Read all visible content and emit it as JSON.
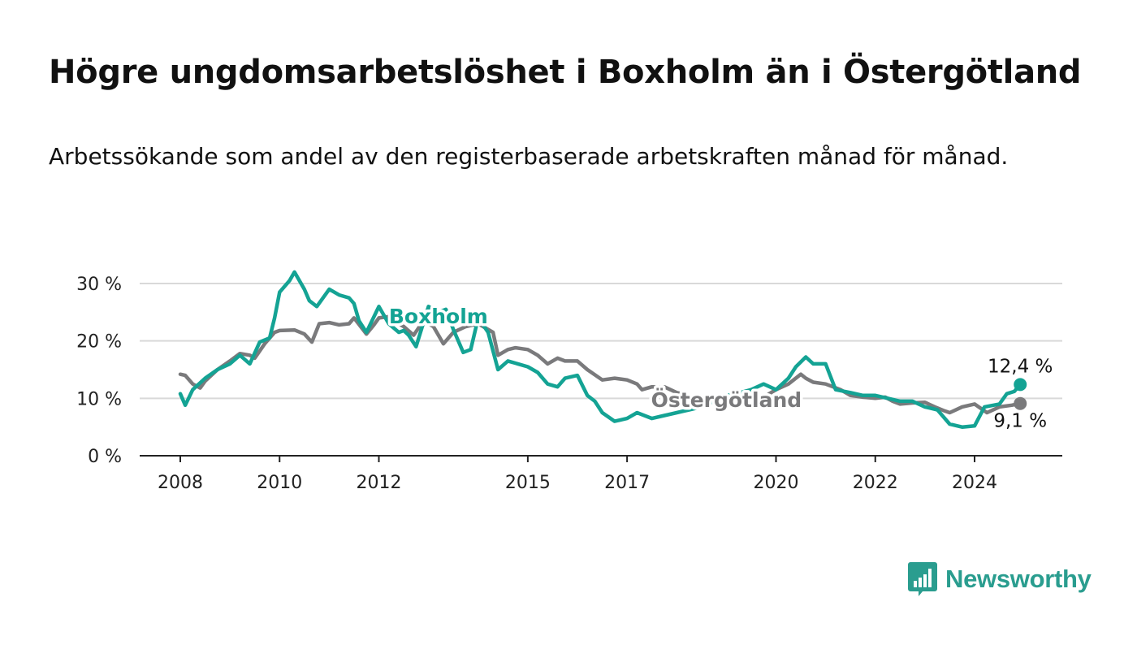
{
  "title": "Högre ungdomsarbetslöshet i Boxholm än i Östergötland",
  "subtitle": "Arbetssökande som andel av den registerbaserade arbetskraften månad för månad.",
  "brand": {
    "name": "Newsworthy",
    "icon": "bar-chart-speech-bubble-icon",
    "color": "#2a9d8f"
  },
  "chart_data": {
    "type": "line",
    "title": "",
    "xlabel": "",
    "ylabel": "",
    "ylim": [
      0,
      30
    ],
    "xlim": [
      2008.0,
      2024.92
    ],
    "yticks": [
      {
        "value": 0,
        "label": "0 %"
      },
      {
        "value": 10,
        "label": "10 %"
      },
      {
        "value": 20,
        "label": "20 %"
      },
      {
        "value": 30,
        "label": "30 %"
      }
    ],
    "xticks": [
      {
        "value": 2008,
        "label": "2008"
      },
      {
        "value": 2010,
        "label": "2010"
      },
      {
        "value": 2012,
        "label": "2012"
      },
      {
        "value": 2015,
        "label": "2015"
      },
      {
        "value": 2017,
        "label": "2017"
      },
      {
        "value": 2020,
        "label": "2020"
      },
      {
        "value": 2022,
        "label": "2022"
      },
      {
        "value": 2024,
        "label": "2024"
      }
    ],
    "grid": true,
    "legend": "none",
    "series": [
      {
        "name": "Östergötland",
        "color": "#7a7a7c",
        "label_position": [
          2019.0,
          8.5
        ],
        "end_label": "9,1 %",
        "end_value": 9.1,
        "points": [
          [
            2008.0,
            14.2
          ],
          [
            2008.1,
            14.0
          ],
          [
            2008.25,
            12.5
          ],
          [
            2008.4,
            11.8
          ],
          [
            2008.5,
            13.0
          ],
          [
            2008.75,
            15.0
          ],
          [
            2009.0,
            16.5
          ],
          [
            2009.2,
            17.8
          ],
          [
            2009.4,
            17.5
          ],
          [
            2009.5,
            17.0
          ],
          [
            2009.7,
            19.5
          ],
          [
            2009.9,
            21.5
          ],
          [
            2010.0,
            21.8
          ],
          [
            2010.3,
            21.9
          ],
          [
            2010.5,
            21.2
          ],
          [
            2010.65,
            19.8
          ],
          [
            2010.8,
            23.0
          ],
          [
            2011.0,
            23.2
          ],
          [
            2011.2,
            22.8
          ],
          [
            2011.4,
            23.0
          ],
          [
            2011.5,
            24.0
          ],
          [
            2011.75,
            21.2
          ],
          [
            2011.9,
            22.8
          ],
          [
            2012.0,
            24.0
          ],
          [
            2012.25,
            24.3
          ],
          [
            2012.4,
            23.0
          ],
          [
            2012.5,
            22.5
          ],
          [
            2012.7,
            21.0
          ],
          [
            2012.9,
            23.5
          ],
          [
            2013.1,
            22.5
          ],
          [
            2013.3,
            19.5
          ],
          [
            2013.5,
            21.5
          ],
          [
            2013.75,
            22.5
          ],
          [
            2014.0,
            23.0
          ],
          [
            2014.3,
            21.5
          ],
          [
            2014.4,
            17.5
          ],
          [
            2014.6,
            18.5
          ],
          [
            2014.75,
            18.8
          ],
          [
            2015.0,
            18.5
          ],
          [
            2015.2,
            17.5
          ],
          [
            2015.4,
            16.0
          ],
          [
            2015.6,
            17.0
          ],
          [
            2015.75,
            16.5
          ],
          [
            2016.0,
            16.5
          ],
          [
            2016.2,
            15.0
          ],
          [
            2016.5,
            13.2
          ],
          [
            2016.75,
            13.5
          ],
          [
            2017.0,
            13.2
          ],
          [
            2017.2,
            12.5
          ],
          [
            2017.3,
            11.5
          ],
          [
            2017.5,
            12.0
          ],
          [
            2017.75,
            12.0
          ],
          [
            2018.0,
            11.0
          ],
          [
            2018.25,
            10.5
          ],
          [
            2018.5,
            9.0
          ],
          [
            2018.75,
            9.5
          ],
          [
            2019.0,
            9.5
          ],
          [
            2019.25,
            9.8
          ],
          [
            2019.5,
            10.5
          ],
          [
            2019.75,
            10.2
          ],
          [
            2020.0,
            11.5
          ],
          [
            2020.25,
            12.5
          ],
          [
            2020.5,
            14.2
          ],
          [
            2020.6,
            13.5
          ],
          [
            2020.75,
            12.8
          ],
          [
            2021.0,
            12.5
          ],
          [
            2021.3,
            11.5
          ],
          [
            2021.5,
            10.5
          ],
          [
            2021.75,
            10.2
          ],
          [
            2022.0,
            10.0
          ],
          [
            2022.2,
            10.2
          ],
          [
            2022.35,
            9.5
          ],
          [
            2022.5,
            9.0
          ],
          [
            2022.75,
            9.2
          ],
          [
            2023.0,
            9.3
          ],
          [
            2023.2,
            8.5
          ],
          [
            2023.4,
            7.8
          ],
          [
            2023.5,
            7.5
          ],
          [
            2023.75,
            8.5
          ],
          [
            2024.0,
            9.0
          ],
          [
            2024.25,
            7.5
          ],
          [
            2024.5,
            8.5
          ],
          [
            2024.75,
            8.8
          ],
          [
            2024.92,
            9.1
          ]
        ]
      },
      {
        "name": "Boxholm",
        "color": "#14a394",
        "label_position": [
          2013.2,
          23.1
        ],
        "end_label": "12,4 %",
        "end_value": 12.4,
        "points": [
          [
            2008.0,
            10.8
          ],
          [
            2008.1,
            8.8
          ],
          [
            2008.25,
            11.5
          ],
          [
            2008.5,
            13.5
          ],
          [
            2008.75,
            15.0
          ],
          [
            2009.0,
            16.0
          ],
          [
            2009.2,
            17.5
          ],
          [
            2009.4,
            16.0
          ],
          [
            2009.6,
            19.8
          ],
          [
            2009.8,
            20.5
          ],
          [
            2009.9,
            24.0
          ],
          [
            2010.0,
            28.5
          ],
          [
            2010.2,
            30.5
          ],
          [
            2010.3,
            32.0
          ],
          [
            2010.5,
            29.0
          ],
          [
            2010.6,
            27.0
          ],
          [
            2010.75,
            26.0
          ],
          [
            2011.0,
            29.0
          ],
          [
            2011.2,
            28.0
          ],
          [
            2011.4,
            27.5
          ],
          [
            2011.5,
            26.5
          ],
          [
            2011.6,
            23.5
          ],
          [
            2011.75,
            21.5
          ],
          [
            2012.0,
            26.0
          ],
          [
            2012.2,
            23.0
          ],
          [
            2012.4,
            21.5
          ],
          [
            2012.5,
            21.8
          ],
          [
            2012.6,
            21.0
          ],
          [
            2012.75,
            19.0
          ],
          [
            2013.0,
            26.0
          ],
          [
            2013.2,
            25.0
          ],
          [
            2013.35,
            25.5
          ],
          [
            2013.5,
            22.0
          ],
          [
            2013.7,
            18.0
          ],
          [
            2013.85,
            18.5
          ],
          [
            2014.0,
            24.0
          ],
          [
            2014.2,
            21.5
          ],
          [
            2014.4,
            15.0
          ],
          [
            2014.6,
            16.5
          ],
          [
            2014.8,
            16.0
          ],
          [
            2015.0,
            15.5
          ],
          [
            2015.2,
            14.5
          ],
          [
            2015.4,
            12.5
          ],
          [
            2015.6,
            12.0
          ],
          [
            2015.75,
            13.5
          ],
          [
            2016.0,
            14.0
          ],
          [
            2016.2,
            10.5
          ],
          [
            2016.35,
            9.5
          ],
          [
            2016.5,
            7.5
          ],
          [
            2016.75,
            6.0
          ],
          [
            2017.0,
            6.5
          ],
          [
            2017.2,
            7.5
          ],
          [
            2017.5,
            6.5
          ],
          [
            2017.75,
            7.0
          ],
          [
            2018.0,
            7.5
          ],
          [
            2018.25,
            8.0
          ],
          [
            2018.5,
            8.5
          ],
          [
            2018.75,
            9.5
          ],
          [
            2019.0,
            10.5
          ],
          [
            2019.2,
            10.8
          ],
          [
            2019.5,
            11.5
          ],
          [
            2019.75,
            12.5
          ],
          [
            2020.0,
            11.5
          ],
          [
            2020.25,
            13.5
          ],
          [
            2020.4,
            15.5
          ],
          [
            2020.6,
            17.2
          ],
          [
            2020.75,
            16.0
          ],
          [
            2021.0,
            16.0
          ],
          [
            2021.2,
            11.5
          ],
          [
            2021.5,
            11.0
          ],
          [
            2021.75,
            10.5
          ],
          [
            2022.0,
            10.5
          ],
          [
            2022.25,
            10.0
          ],
          [
            2022.5,
            9.5
          ],
          [
            2022.75,
            9.5
          ],
          [
            2023.0,
            8.5
          ],
          [
            2023.25,
            8.0
          ],
          [
            2023.5,
            5.5
          ],
          [
            2023.75,
            5.0
          ],
          [
            2024.0,
            5.2
          ],
          [
            2024.2,
            8.5
          ],
          [
            2024.5,
            9.0
          ],
          [
            2024.65,
            10.8
          ],
          [
            2024.8,
            11.2
          ],
          [
            2024.92,
            12.4
          ]
        ]
      }
    ]
  }
}
